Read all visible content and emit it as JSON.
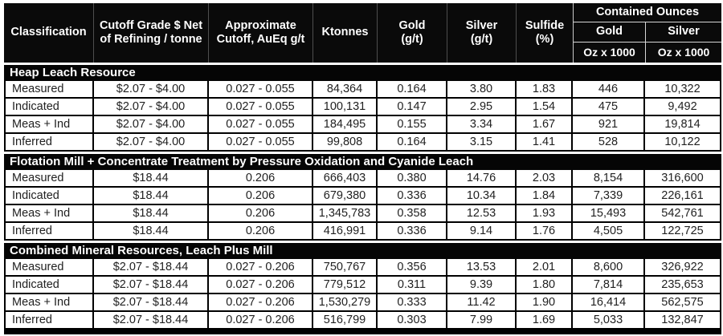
{
  "header": {
    "classification": "Classification",
    "cutoff_grade": "Cutoff Grade $ Net of Refining / tonne",
    "approx_cutoff": "Approximate Cutoff, AuEq g/t",
    "ktonnes": "Ktonnes",
    "gold_label": "Gold",
    "gold_unit": "(g/t)",
    "silver_label": "Silver",
    "silver_unit": "(g/t)",
    "sulfide_label": "Sulfide",
    "sulfide_unit": "(%)",
    "contained_ounces": "Contained Ounces",
    "contained_gold": "Gold",
    "contained_silver": "Silver",
    "gold_oz_unit": "Oz x 1000",
    "silver_oz_unit": "Oz x 1000"
  },
  "colors": {
    "header_bg": "#0a0a0a",
    "band_bg": "#050505",
    "body_text": "#212121",
    "grid_line": "#000000"
  },
  "sections": [
    {
      "title": "Heap Leach Resource",
      "rows": [
        [
          "Measured",
          "$2.07 - $4.00",
          "0.027 - 0.055",
          "84,364",
          "0.164",
          "3.80",
          "1.83",
          "446",
          "10,322"
        ],
        [
          "Indicated",
          "$2.07 - $4.00",
          "0.027 - 0.055",
          "100,131",
          "0.147",
          "2.95",
          "1.54",
          "475",
          "9,492"
        ],
        [
          "Meas + Ind",
          "$2.07 - $4.00",
          "0.027 - 0.055",
          "184,495",
          "0.155",
          "3.34",
          "1.67",
          "921",
          "19,814"
        ],
        [
          "Inferred",
          "$2.07 - $4.00",
          "0.027 - 0.055",
          "99,808",
          "0.164",
          "3.15",
          "1.41",
          "528",
          "10,122"
        ]
      ]
    },
    {
      "title": "Flotation Mill + Concentrate Treatment by Pressure Oxidation and Cyanide Leach",
      "rows": [
        [
          "Measured",
          "$18.44",
          "0.206",
          "666,403",
          "0.380",
          "14.76",
          "2.03",
          "8,154",
          "316,600"
        ],
        [
          "Indicated",
          "$18.44",
          "0.206",
          "679,380",
          "0.336",
          "10.34",
          "1.84",
          "7,339",
          "226,161"
        ],
        [
          "Meas + Ind",
          "$18.44",
          "0.206",
          "1,345,783",
          "0.358",
          "12.53",
          "1.93",
          "15,493",
          "542,761"
        ],
        [
          "Inferred",
          "$18.44",
          "0.206",
          "416,991",
          "0.336",
          "9.14",
          "1.76",
          "4,505",
          "122,725"
        ]
      ]
    },
    {
      "title": "Combined Mineral Resources, Leach Plus Mill",
      "rows": [
        [
          "Measured",
          "$2.07 - $18.44",
          "0.027 - 0.206",
          "750,767",
          "0.356",
          "13.53",
          "2.01",
          "8,600",
          "326,922"
        ],
        [
          "Indicated",
          "$2.07 - $18.44",
          "0.027 - 0.206",
          "779,512",
          "0.311",
          "9.39",
          "1.80",
          "7,814",
          "235,653"
        ],
        [
          "Meas + Ind",
          "$2.07 - $18.44",
          "0.027 - 0.206",
          "1,530,279",
          "0.333",
          "11.42",
          "1.90",
          "16,414",
          "562,575"
        ],
        [
          "Inferred",
          "$2.07 - $18.44",
          "0.027 - 0.206",
          "516,799",
          "0.303",
          "7.99",
          "1.69",
          "5,033",
          "132,847"
        ]
      ]
    }
  ]
}
